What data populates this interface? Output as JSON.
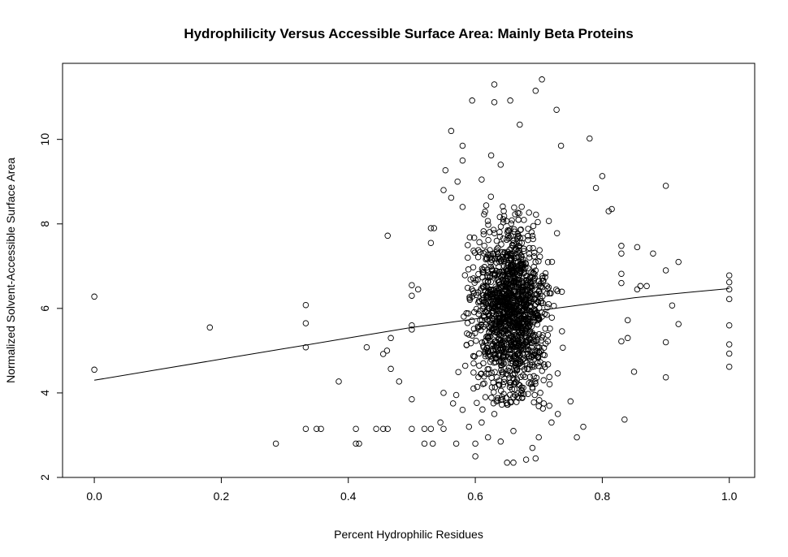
{
  "chart_data": {
    "type": "scatter",
    "title": "Hydrophilicity Versus Accessible Surface Area: Mainly Beta Proteins",
    "xlabel": "Percent Hydrophilic Residues",
    "ylabel": "Normalized Solvent-Accessible Surface Area",
    "xlim": [
      -0.05,
      1.04
    ],
    "ylim": [
      2.0,
      11.8
    ],
    "x_ticks": [
      0.0,
      0.2,
      0.4,
      0.6,
      0.8,
      1.0
    ],
    "x_tick_labels": [
      "0.0",
      "0.2",
      "0.4",
      "0.6",
      "0.8",
      "1.0"
    ],
    "y_ticks": [
      2,
      4,
      6,
      8,
      10
    ],
    "y_tick_labels": [
      "2",
      "4",
      "6",
      "8",
      "10"
    ],
    "grid": false,
    "legend": "none",
    "marker": "open-circle",
    "point_color": "#000000",
    "fit_line": {
      "type": "smooth",
      "x": [
        0.0,
        0.1,
        0.2,
        0.3,
        0.4,
        0.5,
        0.55,
        0.6,
        0.65,
        0.7,
        0.75,
        0.8,
        0.85,
        0.9,
        0.95,
        1.0
      ],
      "y": [
        4.3,
        4.55,
        4.8,
        5.05,
        5.3,
        5.55,
        5.65,
        5.75,
        5.85,
        5.95,
        6.05,
        6.15,
        6.25,
        6.33,
        6.4,
        6.47
      ]
    },
    "points": [
      [
        0.0,
        6.28
      ],
      [
        0.0,
        4.55
      ],
      [
        0.182,
        5.55
      ],
      [
        0.286,
        2.8
      ],
      [
        0.333,
        6.08
      ],
      [
        0.333,
        5.65
      ],
      [
        0.333,
        5.08
      ],
      [
        0.333,
        3.15
      ],
      [
        0.35,
        3.15
      ],
      [
        0.357,
        3.15
      ],
      [
        0.385,
        4.27
      ],
      [
        0.412,
        3.15
      ],
      [
        0.412,
        2.8
      ],
      [
        0.417,
        2.8
      ],
      [
        0.429,
        5.08
      ],
      [
        0.444,
        3.15
      ],
      [
        0.455,
        3.15
      ],
      [
        0.462,
        3.15
      ],
      [
        0.455,
        4.92
      ],
      [
        0.461,
        5.0
      ],
      [
        0.462,
        7.72
      ],
      [
        0.467,
        4.57
      ],
      [
        0.467,
        5.3
      ],
      [
        0.48,
        4.27
      ],
      [
        0.5,
        5.6
      ],
      [
        0.5,
        5.5
      ],
      [
        0.5,
        6.55
      ],
      [
        0.5,
        6.3
      ],
      [
        0.5,
        3.85
      ],
      [
        0.5,
        3.15
      ],
      [
        0.51,
        6.45
      ],
      [
        0.52,
        2.8
      ],
      [
        0.52,
        3.15
      ],
      [
        0.53,
        3.15
      ],
      [
        0.533,
        2.8
      ],
      [
        0.53,
        7.55
      ],
      [
        0.53,
        7.9
      ],
      [
        0.535,
        7.9
      ],
      [
        0.545,
        3.3
      ],
      [
        0.55,
        4.0
      ],
      [
        0.55,
        3.15
      ],
      [
        0.55,
        8.8
      ],
      [
        0.553,
        9.27
      ],
      [
        0.562,
        10.2
      ],
      [
        0.562,
        8.62
      ],
      [
        0.565,
        3.75
      ],
      [
        0.57,
        2.8
      ],
      [
        0.572,
        9.0
      ],
      [
        0.58,
        9.85
      ],
      [
        0.58,
        9.5
      ],
      [
        0.595,
        10.92
      ],
      [
        0.61,
        9.05
      ],
      [
        0.625,
        9.62
      ],
      [
        0.63,
        11.3
      ],
      [
        0.63,
        10.88
      ],
      [
        0.64,
        9.4
      ],
      [
        0.655,
        10.92
      ],
      [
        0.67,
        10.35
      ],
      [
        0.695,
        11.15
      ],
      [
        0.705,
        11.42
      ],
      [
        0.728,
        10.7
      ],
      [
        0.735,
        9.85
      ],
      [
        0.78,
        10.02
      ],
      [
        0.8,
        9.13
      ],
      [
        0.9,
        8.9
      ],
      [
        0.79,
        8.85
      ],
      [
        0.81,
        8.3
      ],
      [
        0.815,
        8.35
      ],
      [
        0.83,
        7.48
      ],
      [
        0.83,
        7.3
      ],
      [
        0.855,
        7.45
      ],
      [
        0.855,
        6.45
      ],
      [
        0.86,
        6.53
      ],
      [
        0.87,
        6.53
      ],
      [
        0.88,
        7.3
      ],
      [
        0.9,
        6.9
      ],
      [
        0.9,
        5.2
      ],
      [
        0.9,
        4.37
      ],
      [
        0.91,
        6.07
      ],
      [
        0.92,
        7.1
      ],
      [
        0.92,
        5.63
      ],
      [
        0.83,
        6.82
      ],
      [
        0.83,
        6.6
      ],
      [
        0.84,
        5.72
      ],
      [
        0.84,
        5.3
      ],
      [
        0.85,
        4.5
      ],
      [
        0.835,
        3.37
      ],
      [
        0.83,
        5.22
      ],
      [
        1.0,
        6.78
      ],
      [
        1.0,
        6.62
      ],
      [
        1.0,
        6.45
      ],
      [
        1.0,
        6.22
      ],
      [
        1.0,
        5.6
      ],
      [
        1.0,
        5.15
      ],
      [
        1.0,
        4.93
      ],
      [
        1.0,
        4.62
      ],
      [
        0.6,
        2.5
      ],
      [
        0.62,
        2.95
      ],
      [
        0.64,
        2.85
      ],
      [
        0.65,
        2.35
      ],
      [
        0.66,
        2.35
      ],
      [
        0.68,
        2.42
      ],
      [
        0.69,
        2.7
      ],
      [
        0.695,
        2.45
      ],
      [
        0.7,
        2.95
      ],
      [
        0.72,
        3.3
      ],
      [
        0.73,
        3.5
      ],
      [
        0.76,
        2.95
      ],
      [
        0.77,
        3.2
      ],
      [
        0.75,
        3.8
      ],
      [
        0.58,
        3.6
      ],
      [
        0.57,
        3.95
      ],
      [
        0.59,
        3.2
      ],
      [
        0.6,
        2.8
      ],
      [
        0.61,
        3.3
      ],
      [
        0.63,
        3.5
      ],
      [
        0.66,
        3.1
      ]
    ],
    "cluster": {
      "x_range": [
        0.56,
        0.78
      ],
      "y_range": [
        3.6,
        9.3
      ],
      "n": 1400,
      "x_center": 0.655,
      "y_center": 6.0
    }
  }
}
